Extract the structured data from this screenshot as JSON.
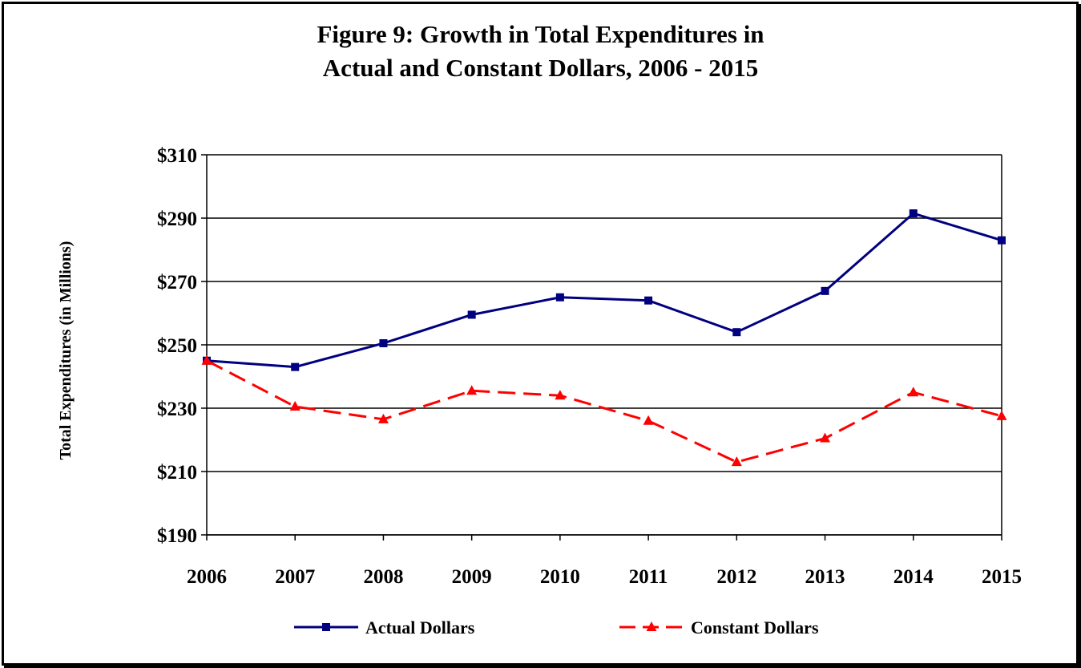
{
  "chart_data": {
    "type": "line",
    "title_line1": "Figure 9:  Growth in Total Expenditures in",
    "title_line2": "Actual and Constant Dollars, 2006 - 2015",
    "ylabel": "Total Expenditures (in Millions)",
    "xlabel": "",
    "x": [
      "2006",
      "2007",
      "2008",
      "2009",
      "2010",
      "2011",
      "2012",
      "2013",
      "2014",
      "2015"
    ],
    "ylim": [
      190,
      310
    ],
    "yticks": [
      190,
      210,
      230,
      250,
      270,
      290,
      310
    ],
    "ytick_labels": [
      "$190",
      "$210",
      "$230",
      "$250",
      "$270",
      "$290",
      "$310"
    ],
    "grid": "horizontal",
    "legend_position": "bottom",
    "series": [
      {
        "name": "Actual Dollars",
        "color": "#000080",
        "marker": "square",
        "line_style": "solid",
        "values": [
          245,
          243,
          250.5,
          259.5,
          265,
          264,
          254,
          267,
          291.5,
          283
        ]
      },
      {
        "name": "Constant Dollars",
        "color": "#ff0000",
        "marker": "triangle",
        "line_style": "dashed",
        "values": [
          245,
          230.5,
          226.5,
          235.5,
          234,
          226,
          213,
          220.5,
          235,
          227.5
        ]
      }
    ]
  }
}
